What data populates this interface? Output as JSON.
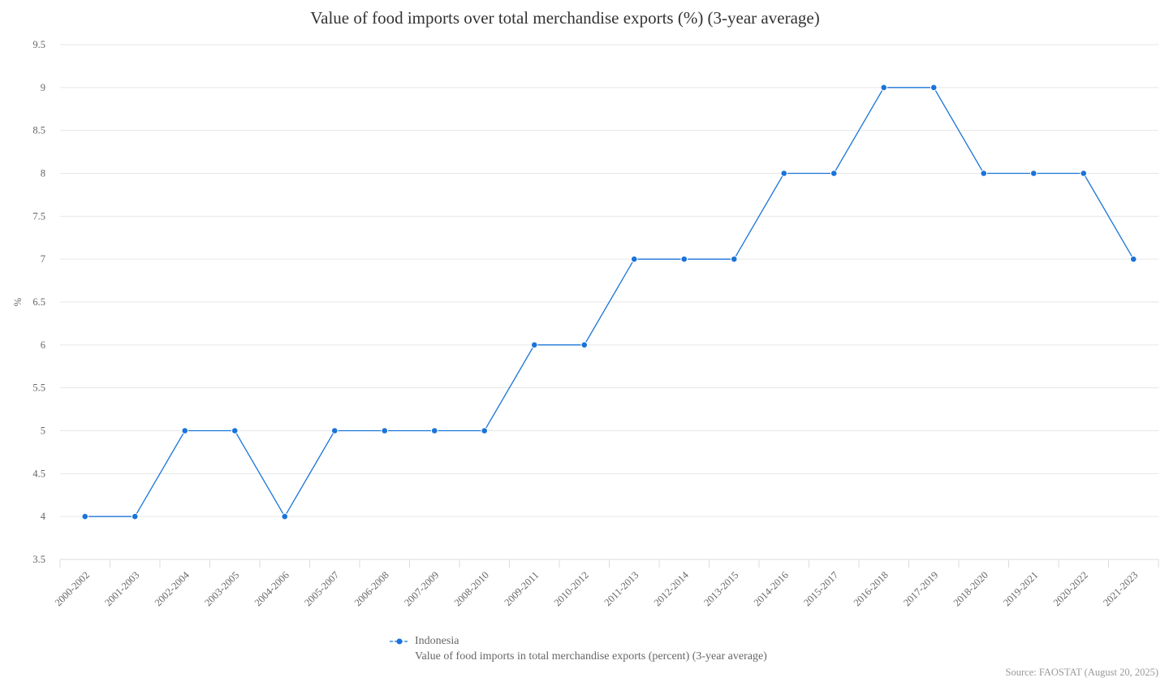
{
  "chart_data": {
    "type": "line",
    "title": "Value of food imports over total merchandise exports (%) (3-year average)",
    "xlabel": "",
    "ylabel": "%",
    "ylim": [
      3.5,
      9.5
    ],
    "yticks": [
      "3.5",
      "4",
      "4.5",
      "5",
      "5.5",
      "6",
      "6.5",
      "7",
      "7.5",
      "8",
      "8.5",
      "9",
      "9.5"
    ],
    "grid": true,
    "legend_position": "bottom-center",
    "categories": [
      "2000-2002",
      "2001-2003",
      "2002-2004",
      "2003-2005",
      "2004-2006",
      "2005-2007",
      "2006-2008",
      "2007-2009",
      "2008-2010",
      "2009-2011",
      "2010-2012",
      "2011-2013",
      "2012-2014",
      "2013-2015",
      "2014-2016",
      "2015-2017",
      "2016-2018",
      "2017-2019",
      "2018-2020",
      "2019-2021",
      "2020-2022",
      "2021-2023"
    ],
    "series": [
      {
        "name": "Indonesia",
        "description": "Value of food imports in total merchandise exports (percent) (3-year average)",
        "color": "#1a73d9",
        "values": [
          4,
          4,
          5,
          5,
          4,
          5,
          5,
          5,
          5,
          6,
          6,
          7,
          7,
          7,
          8,
          8,
          9,
          9,
          8,
          8,
          8,
          7
        ]
      }
    ]
  },
  "source": "Source: FAOSTAT (August 20, 2025)"
}
